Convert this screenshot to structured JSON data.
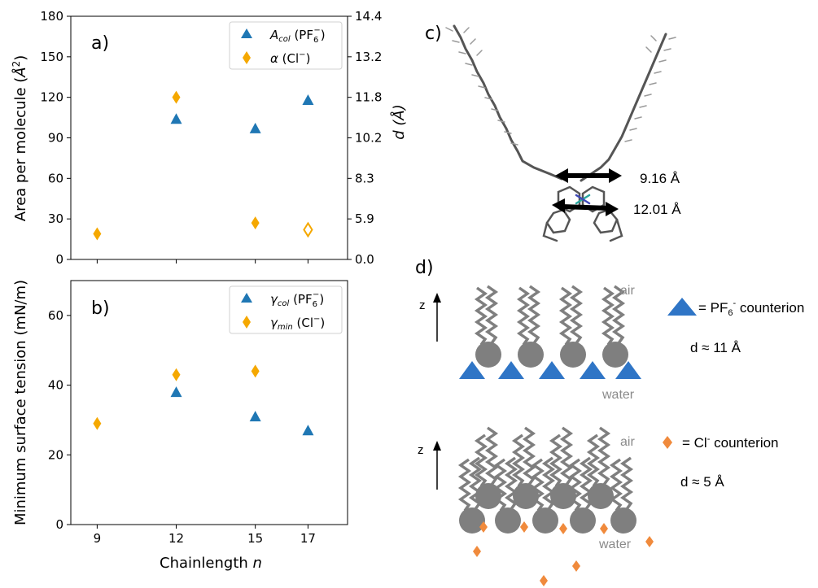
{
  "chart_data": [
    {
      "type": "scatter",
      "panel": "a)",
      "ylabel": "Area per molecule (Å²)",
      "y2label": "d (Å)",
      "xlim": [
        8,
        18.5
      ],
      "ylim": [
        0,
        180
      ],
      "y2lim": [
        0,
        14.4
      ],
      "yticks": [
        0,
        30,
        60,
        90,
        120,
        150,
        180
      ],
      "y2ticks": [
        "0.0",
        "5.9",
        "8.3",
        "10.2",
        "11.8",
        "13.2",
        "14.4"
      ],
      "series": [
        {
          "name": "A_col (PF6−)",
          "marker": "triangle",
          "color": "#1f77b4",
          "filled": true,
          "points": [
            [
              12,
              104
            ],
            [
              15,
              97
            ],
            [
              17,
              118
            ]
          ]
        },
        {
          "name": "α (Cl−)",
          "marker": "diamond",
          "color": "#f5a800",
          "filled": true,
          "points": [
            [
              9,
              19
            ],
            [
              12,
              120
            ],
            [
              15,
              27
            ]
          ]
        },
        {
          "name": "",
          "marker": "diamond",
          "color": "#f5a800",
          "filled": false,
          "points": [
            [
              17,
              22
            ]
          ]
        }
      ],
      "legend": "top-right"
    },
    {
      "type": "scatter",
      "panel": "b)",
      "xlabel": "Chainlength n",
      "ylabel": "Minimum surface tension (mN/m)",
      "xlim": [
        8,
        18.5
      ],
      "ylim": [
        0,
        70
      ],
      "xticks": [
        9,
        12,
        15,
        17
      ],
      "yticks": [
        0,
        20,
        40,
        60
      ],
      "series": [
        {
          "name": "γ_col (PF6−)",
          "marker": "triangle",
          "color": "#1f77b4",
          "filled": true,
          "points": [
            [
              12,
              38
            ],
            [
              15,
              31
            ],
            [
              17,
              27
            ]
          ]
        },
        {
          "name": "γ_min (Cl−)",
          "marker": "diamond",
          "color": "#f5a800",
          "filled": true,
          "points": [
            [
              9,
              29
            ],
            [
              12,
              43
            ],
            [
              15,
              44
            ]
          ]
        }
      ],
      "legend": "top-right"
    }
  ],
  "legend_a": {
    "s1_base": "A",
    "s1_sub": "col",
    "s1_tail": "(PF",
    "s1_ion_sub": "6",
    "s1_ion_sup": "−",
    "s1_close": ")",
    "s2_base": "α",
    "s2_tail": "(Cl",
    "s2_sup": "−",
    "s2_close": ")"
  },
  "legend_b": {
    "s1_base": "γ",
    "s1_sub": "col",
    "s1_tail": "(PF",
    "s1_ion_sub": "6",
    "s1_ion_sup": "−",
    "s1_close": ")",
    "s2_base": "γ",
    "s2_sub": "min",
    "s2_tail": "(Cl",
    "s2_sup": "−",
    "s2_close": ")"
  },
  "labels": {
    "panel_a": "a)",
    "panel_b": "b)",
    "panel_c": "c)",
    "panel_d": "d)",
    "xlabel_main": "Chainlength",
    "xlabel_var": "n",
    "ylabel_a": "Area per molecule (",
    "ylabel_a_unit": "Å",
    "ylabel_a_sup": "2",
    "ylabel_a_close": ")",
    "y2label_var": "d",
    "y2label_unit": "(Å)",
    "ylabel_b": "Minimum surface tension (mN/m)"
  },
  "molecule": {
    "width_top": "9.16 Å",
    "width_bottom": "12.01 Å"
  },
  "schematic": {
    "z_label": "z",
    "air": "air",
    "water": "water",
    "pf6_legend_prefix": "= PF",
    "pf6_sub": "6",
    "pf6_sup": "-",
    "pf6_legend_suffix": " counterion",
    "cl_legend_prefix": "= Cl",
    "cl_sup": "-",
    "cl_legend_suffix": " counterion",
    "d_top": "d ≈ 11 Å",
    "d_bottom": "d ≈ 5 Å"
  },
  "colors": {
    "blue": "#1f77b4",
    "orange": "#f5a800",
    "schematic_blue": "#2f75c6",
    "schematic_orange": "#f08a3c",
    "grey": "#7f7f7f"
  }
}
